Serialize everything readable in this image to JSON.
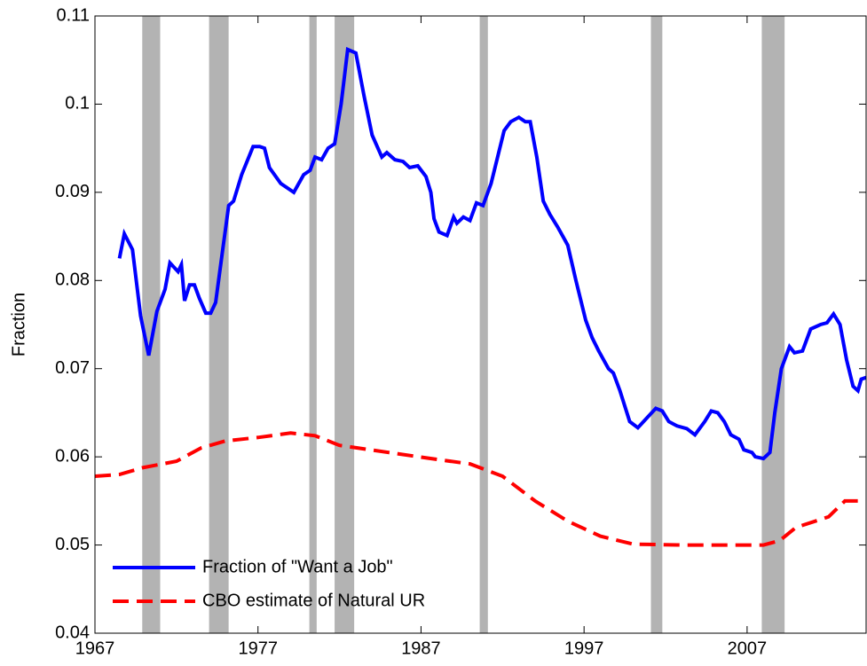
{
  "chart_data": {
    "type": "line",
    "y_label": "Fraction",
    "xlim": [
      1967,
      2014.3
    ],
    "xticks": [
      1967,
      1977,
      1987,
      1997,
      2007
    ],
    "ylim": [
      0.04,
      0.11
    ],
    "yticks": [
      0.04,
      0.05,
      0.06,
      0.07,
      0.08,
      0.09,
      0.1,
      0.11
    ],
    "legend": "lower left",
    "recessions": {
      "color": "#b3b3b3",
      "spans": [
        [
          1969.9,
          1971.0
        ],
        [
          1974.0,
          1975.2
        ],
        [
          1980.15,
          1980.6
        ],
        [
          1981.7,
          1982.9
        ],
        [
          1990.6,
          1991.1
        ],
        [
          2001.1,
          2001.8
        ],
        [
          2007.9,
          2009.3
        ]
      ]
    },
    "series": [
      {
        "name": "Fraction of \"Want a Job\"",
        "color": "#0000ff",
        "style": "solid",
        "x": [
          1968.5,
          1968.8,
          1969.3,
          1969.8,
          1970.3,
          1970.8,
          1971.3,
          1971.6,
          1972.1,
          1972.3,
          1972.5,
          1972.8,
          1973.1,
          1973.4,
          1973.8,
          1974.1,
          1974.4,
          1974.8,
          1975.2,
          1975.5,
          1976.0,
          1976.7,
          1977.1,
          1977.4,
          1977.7,
          1978.4,
          1979.2,
          1979.8,
          1980.2,
          1980.5,
          1980.9,
          1981.3,
          1981.7,
          1982.1,
          1982.5,
          1983.0,
          1983.5,
          1984.0,
          1984.6,
          1984.9,
          1985.4,
          1985.9,
          1986.3,
          1986.8,
          1987.3,
          1987.6,
          1987.8,
          1988.1,
          1988.6,
          1989.0,
          1989.2,
          1989.6,
          1990.0,
          1990.4,
          1990.8,
          1991.3,
          1992.1,
          1992.5,
          1993.0,
          1993.4,
          1993.7,
          1994.1,
          1994.5,
          1994.9,
          1995.4,
          1996.0,
          1996.5,
          1997.1,
          1997.5,
          1997.9,
          1998.5,
          1998.8,
          1999.2,
          1999.8,
          2000.3,
          2000.9,
          2001.4,
          2001.8,
          2002.2,
          2002.7,
          2003.3,
          2003.8,
          2004.4,
          2004.8,
          2005.2,
          2005.6,
          2006.0,
          2006.5,
          2006.8,
          2007.3,
          2007.5,
          2008.0,
          2008.4,
          2008.7,
          2009.1,
          2009.6,
          2009.9,
          2010.4,
          2010.9,
          2011.5,
          2011.9,
          2012.3,
          2012.7,
          2013.1,
          2013.5,
          2013.8,
          2014.0,
          2014.3
        ],
        "values": [
          0.0825,
          0.0853,
          0.0835,
          0.076,
          0.0715,
          0.0765,
          0.079,
          0.082,
          0.081,
          0.0818,
          0.0777,
          0.0795,
          0.0795,
          0.078,
          0.0763,
          0.0763,
          0.0775,
          0.083,
          0.0885,
          0.089,
          0.092,
          0.0952,
          0.0952,
          0.095,
          0.0928,
          0.091,
          0.09,
          0.092,
          0.0925,
          0.094,
          0.0937,
          0.095,
          0.0955,
          0.1,
          0.1062,
          0.1058,
          0.101,
          0.0965,
          0.094,
          0.0945,
          0.0937,
          0.0935,
          0.0928,
          0.093,
          0.0918,
          0.09,
          0.087,
          0.0855,
          0.0851,
          0.0872,
          0.0865,
          0.0872,
          0.0868,
          0.0888,
          0.0885,
          0.091,
          0.097,
          0.098,
          0.0985,
          0.098,
          0.098,
          0.094,
          0.089,
          0.0875,
          0.086,
          0.084,
          0.08,
          0.0755,
          0.0735,
          0.072,
          0.07,
          0.0695,
          0.0675,
          0.064,
          0.0633,
          0.0645,
          0.0655,
          0.0652,
          0.064,
          0.0635,
          0.0632,
          0.0625,
          0.064,
          0.0652,
          0.065,
          0.064,
          0.0625,
          0.062,
          0.0608,
          0.0605,
          0.06,
          0.0598,
          0.0605,
          0.065,
          0.07,
          0.0725,
          0.0718,
          0.072,
          0.0745,
          0.075,
          0.0752,
          0.0762,
          0.075,
          0.071,
          0.068,
          0.0675,
          0.0688,
          0.069
        ]
      },
      {
        "name": "CBO estimate of Natural UR",
        "color": "#ff0000",
        "style": "dashed",
        "x": [
          1967,
          1968.5,
          1970,
          1972,
          1973.5,
          1975,
          1977,
          1979,
          1980.5,
          1982,
          1985,
          1988,
          1990,
          1992,
          1994,
          1996,
          1998,
          2000,
          2003,
          2006,
          2008,
          2009,
          2010,
          2012,
          2013,
          2014.3
        ],
        "values": [
          0.0578,
          0.058,
          0.0588,
          0.0595,
          0.061,
          0.0618,
          0.0622,
          0.0627,
          0.0624,
          0.0613,
          0.0605,
          0.0597,
          0.0592,
          0.0578,
          0.055,
          0.0527,
          0.051,
          0.0501,
          0.05,
          0.05,
          0.05,
          0.0505,
          0.052,
          0.0532,
          0.055,
          0.055
        ]
      }
    ]
  }
}
